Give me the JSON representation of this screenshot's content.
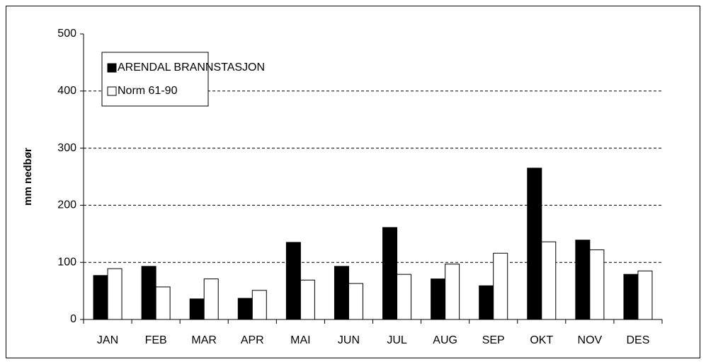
{
  "chart_data": {
    "type": "bar",
    "y_label": "mm nedbør",
    "categories": [
      "JAN",
      "FEB",
      "MAR",
      "APR",
      "MAI",
      "JUN",
      "JUL",
      "AUG",
      "SEP",
      "OKT",
      "NOV",
      "DES"
    ],
    "series": [
      {
        "name": "ARENDAL BRANNSTASJON",
        "color": "#000000",
        "values": [
          77,
          93,
          36,
          37,
          135,
          93,
          161,
          71,
          59,
          265,
          139,
          79
        ]
      },
      {
        "name": "Norm 61-90",
        "color": "#ffffff",
        "values": [
          89,
          57,
          71,
          51,
          69,
          63,
          79,
          97,
          116,
          136,
          122,
          85
        ]
      }
    ],
    "ylim": [
      0,
      500
    ],
    "yticks": [
      0,
      100,
      200,
      300,
      400,
      500
    ],
    "grid": true,
    "legend": "upper left"
  }
}
